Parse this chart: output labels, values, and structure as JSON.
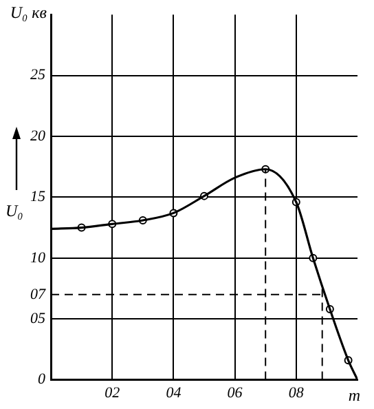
{
  "chart_data": {
    "type": "line",
    "ylabel": "U₀",
    "xlabel": "m",
    "annotations": [
      "U₀ кв"
    ],
    "xlim": [
      0,
      10
    ],
    "xticks": [
      {
        "value": 2,
        "label": "02"
      },
      {
        "value": 4,
        "label": "04"
      },
      {
        "value": 6,
        "label": "06"
      },
      {
        "value": 8,
        "label": "08"
      }
    ],
    "ylim": [
      0,
      30
    ],
    "yticks": [
      0,
      {
        "value": 5,
        "label": "05"
      },
      {
        "value": 7,
        "label": "07"
      },
      10,
      15,
      20,
      25
    ],
    "grid": true,
    "legend": false,
    "series": [
      {
        "color": "#000000",
        "marker": "none",
        "x": [
          0,
          1,
          2,
          3,
          4,
          5,
          6,
          7,
          8,
          8.55,
          9.1,
          9.7,
          10
        ],
        "values": [
          12.4,
          12.5,
          12.8,
          13.1,
          13.7,
          15.1,
          16.6,
          17.3,
          14.6,
          10,
          5.8,
          1.6,
          0
        ]
      },
      {
        "type": "scatter",
        "color": "#000000",
        "marker": "circle",
        "x": [
          1,
          2,
          3,
          4,
          5,
          7,
          8,
          8.55,
          9.1,
          9.7
        ],
        "values": [
          12.5,
          12.8,
          13.1,
          13.7,
          15.1,
          17.3,
          14.6,
          10,
          5.8,
          1.6
        ]
      }
    ],
    "ref_lines": [
      {
        "axis": "x",
        "value": 7,
        "line_style": "dashed"
      },
      {
        "axis": "y",
        "value": 7,
        "line_style": "dashed"
      },
      {
        "axis": "x",
        "value": 8.85,
        "line_style": "dashed"
      }
    ]
  }
}
